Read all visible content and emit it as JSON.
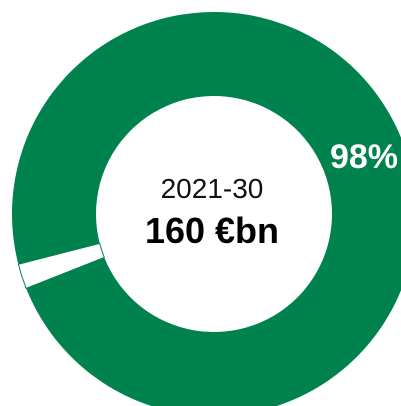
{
  "chart_data": {
    "type": "pie",
    "variant": "donut",
    "center_text": {
      "period": "2021-30",
      "total": "160 €bn"
    },
    "slices": [
      {
        "value": 98,
        "label": "98%",
        "color": "#00824F"
      },
      {
        "value": 2,
        "label": "",
        "color": "#FFFFFF"
      }
    ],
    "legend": "none"
  }
}
